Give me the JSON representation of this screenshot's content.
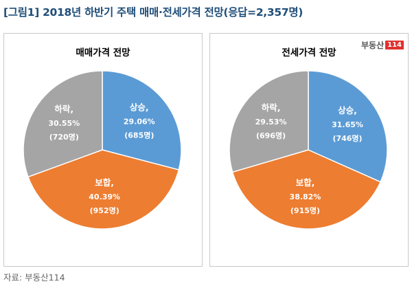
{
  "figure_title": "[그림1] 2018년 하반기 주택 매매·전세가격 전망(응답=2,357명)",
  "source": "자료: 부동산114",
  "logo": {
    "text": "부동산",
    "badge": "114"
  },
  "colors": {
    "up": "#5b9bd5",
    "hold": "#ed7d31",
    "down": "#a5a5a5"
  },
  "chart_data": [
    {
      "type": "pie",
      "title": "매매가격 전망",
      "slices": [
        {
          "name": "상승,",
          "percent": "29.06%",
          "count": "(685명)",
          "value": 29.06,
          "color": "#5b9bd5"
        },
        {
          "name": "보합,",
          "percent": "40.39%",
          "count": "(952명)",
          "value": 40.39,
          "color": "#ed7d31"
        },
        {
          "name": "하락,",
          "percent": "30.55%",
          "count": "(720명)",
          "value": 30.55,
          "color": "#a5a5a5"
        }
      ]
    },
    {
      "type": "pie",
      "title": "전세가격 전망",
      "slices": [
        {
          "name": "상승,",
          "percent": "31.65%",
          "count": "(746명)",
          "value": 31.65,
          "color": "#5b9bd5"
        },
        {
          "name": "보합,",
          "percent": "38.82%",
          "count": "(915명)",
          "value": 38.82,
          "color": "#ed7d31"
        },
        {
          "name": "하락,",
          "percent": "29.53%",
          "count": "(696명)",
          "value": 29.53,
          "color": "#a5a5a5"
        }
      ]
    }
  ]
}
